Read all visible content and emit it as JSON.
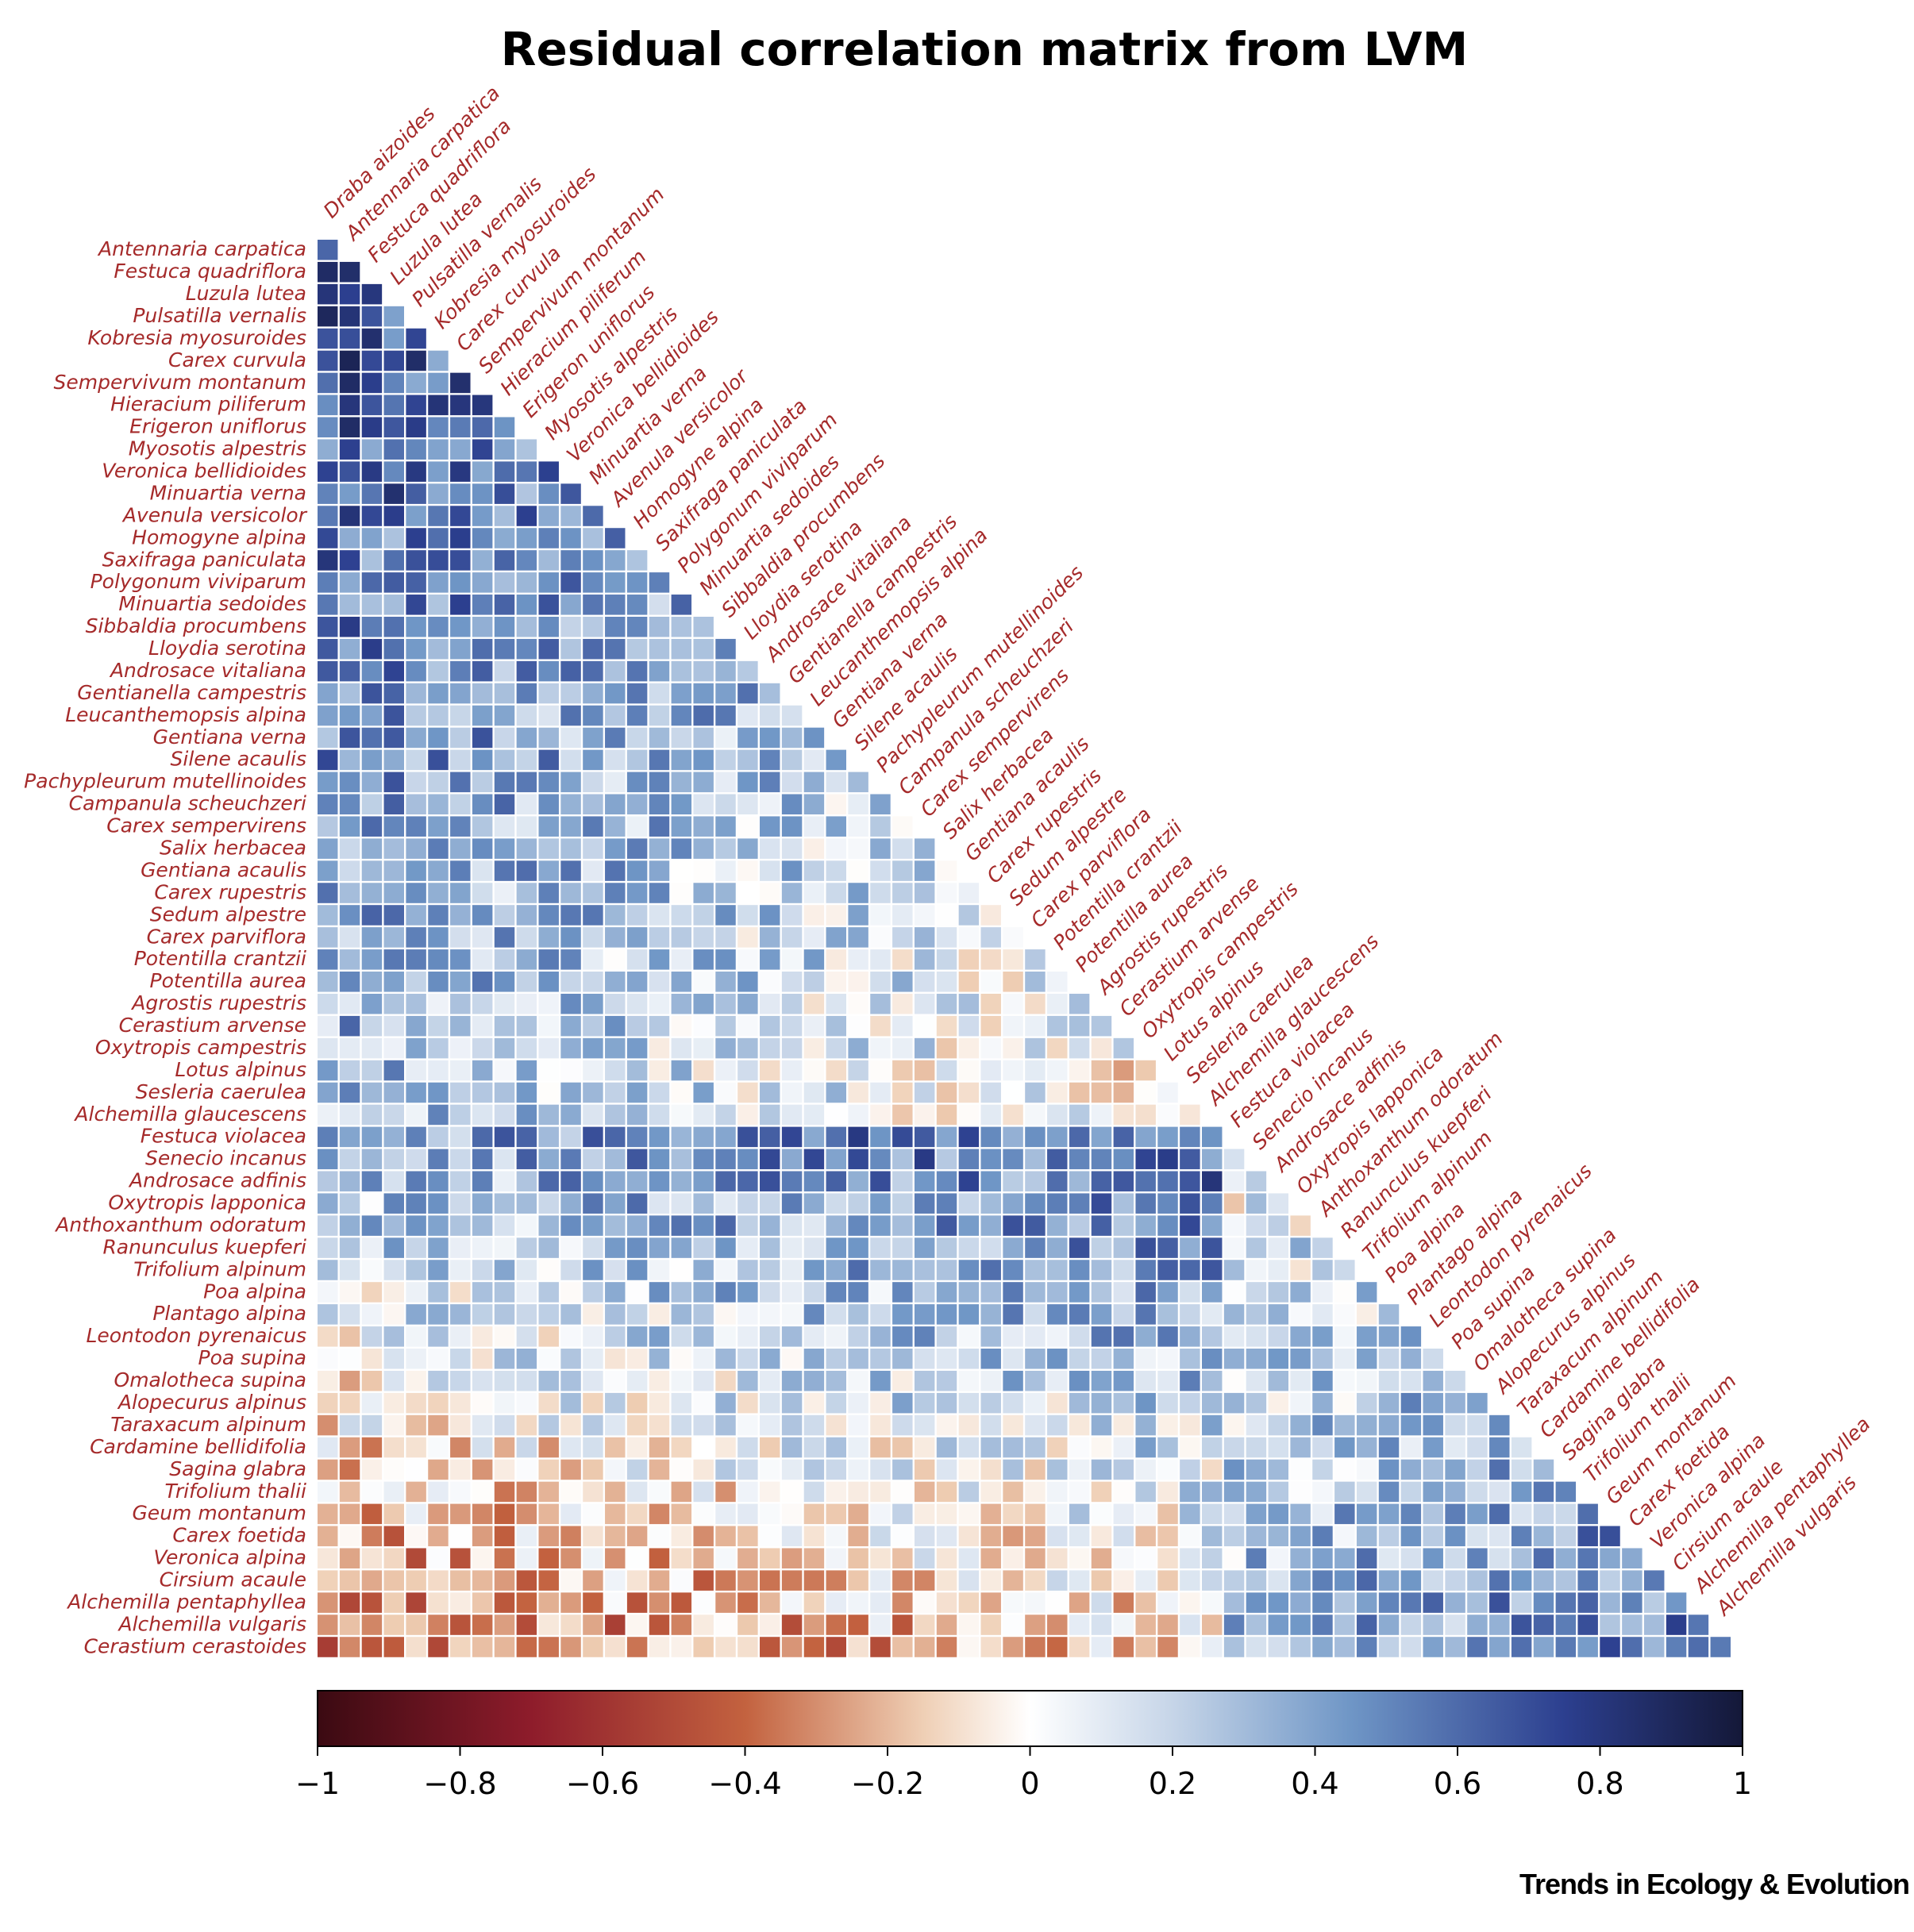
{
  "chart_data": {
    "type": "heatmap",
    "title": "Residual correlation matrix from LVM",
    "species": [
      "Draba aizoides",
      "Antennaria carpatica",
      "Festuca quadriflora",
      "Luzula lutea",
      "Pulsatilla vernalis",
      "Kobresia myosuroides",
      "Carex curvula",
      "Sempervivum montanum",
      "Hieracium piliferum",
      "Erigeron uniflorus",
      "Myosotis alpestris",
      "Veronica bellidioides",
      "Minuartia verna",
      "Avenula versicolor",
      "Homogyne alpina",
      "Saxifraga paniculata",
      "Polygonum viviparum",
      "Minuartia sedoides",
      "Sibbaldia procumbens",
      "Lloydia serotina",
      "Androsace vitaliana",
      "Gentianella campestris",
      "Leucanthemopsis alpina",
      "Gentiana verna",
      "Silene acaulis",
      "Pachypleurum mutellinoides",
      "Campanula scheuchzeri",
      "Carex sempervirens",
      "Salix herbacea",
      "Gentiana acaulis",
      "Carex rupestris",
      "Sedum alpestre",
      "Carex parviflora",
      "Potentilla crantzii",
      "Potentilla aurea",
      "Agrostis rupestris",
      "Cerastium arvense",
      "Oxytropis campestris",
      "Lotus alpinus",
      "Sesleria caerulea",
      "Alchemilla glaucescens",
      "Festuca violacea",
      "Senecio incanus",
      "Androsace adfinis",
      "Oxytropis lapponica",
      "Anthoxanthum odoratum",
      "Ranunculus kuepferi",
      "Trifolium alpinum",
      "Poa alpina",
      "Plantago alpina",
      "Leontodon pyrenaicus",
      "Poa supina",
      "Omalotheca supina",
      "Alopecurus alpinus",
      "Taraxacum alpinum",
      "Cardamine bellidifolia",
      "Sagina glabra",
      "Trifolium thalii",
      "Geum montanum",
      "Carex foetida",
      "Veronica alpina",
      "Cirsium acaule",
      "Alchemilla pentaphyllea",
      "Alchemilla vulgaris",
      "Cerastium cerastoides"
    ],
    "column_labels": [
      "Draba aizoides",
      "Antennaria carpatica",
      "Festuca quadriflora",
      "Luzula lutea",
      "Pulsatilla vernalis",
      "Kobresia myosuroides",
      "Carex curvula",
      "Sempervivum montanum",
      "Hieracium piliferum",
      "Erigeron uniflorus",
      "Myosotis alpestris",
      "Veronica bellidioides",
      "Minuartia verna",
      "Avenula versicolor",
      "Homogyne alpina",
      "Saxifraga paniculata",
      "Polygonum viviparum",
      "Minuartia sedoides",
      "Sibbaldia procumbens",
      "Lloydia serotina",
      "Androsace vitaliana",
      "Gentianella campestris",
      "Leucanthemopsis alpina",
      "Gentiana verna",
      "Silene acaulis",
      "Pachypleurum mutellinoides",
      "Campanula scheuchzeri",
      "Carex sempervirens",
      "Salix herbacea",
      "Gentiana acaulis",
      "Carex rupestris",
      "Sedum alpestre",
      "Carex parviflora",
      "Potentilla crantzii",
      "Potentilla aurea",
      "Agrostis rupestris",
      "Cerastium arvense",
      "Oxytropis campestris",
      "Lotus alpinus",
      "Sesleria caerulea",
      "Alchemilla glaucescens",
      "Festuca violacea",
      "Senecio incanus",
      "Androsace adfinis",
      "Oxytropis lapponica",
      "Anthoxanthum odoratum",
      "Ranunculus kuepferi",
      "Trifolium alpinum",
      "Poa alpina",
      "Plantago alpina",
      "Leontodon pyrenaicus",
      "Poa supina",
      "Omalotheca supina",
      "Alopecurus alpinus",
      "Taraxacum alpinum",
      "Cardamine bellidifolia",
      "Sagina glabra",
      "Trifolium thalii",
      "Geum montanum",
      "Carex foetida",
      "Veronica alpina",
      "Cirsium acaule",
      "Alchemilla pentaphyllea",
      "Alchemilla vulgaris"
    ],
    "row_labels": [
      "Antennaria carpatica",
      "Festuca quadriflora",
      "Luzula lutea",
      "Pulsatilla vernalis",
      "Kobresia myosuroides",
      "Carex curvula",
      "Sempervivum montanum",
      "Hieracium piliferum",
      "Erigeron uniflorus",
      "Myosotis alpestris",
      "Veronica bellidioides",
      "Minuartia verna",
      "Avenula versicolor",
      "Homogyne alpina",
      "Saxifraga paniculata",
      "Polygonum viviparum",
      "Minuartia sedoides",
      "Sibbaldia procumbens",
      "Lloydia serotina",
      "Androsace vitaliana",
      "Gentianella campestris",
      "Leucanthemopsis alpina",
      "Gentiana verna",
      "Silene acaulis",
      "Pachypleurum mutellinoides",
      "Campanula scheuchzeri",
      "Carex sempervirens",
      "Salix herbacea",
      "Gentiana acaulis",
      "Carex rupestris",
      "Sedum alpestre",
      "Carex parviflora",
      "Potentilla crantzii",
      "Potentilla aurea",
      "Agrostis rupestris",
      "Cerastium arvense",
      "Oxytropis campestris",
      "Lotus alpinus",
      "Sesleria caerulea",
      "Alchemilla glaucescens",
      "Festuca violacea",
      "Senecio incanus",
      "Androsace adfinis",
      "Oxytropis lapponica",
      "Anthoxanthum odoratum",
      "Ranunculus kuepferi",
      "Trifolium alpinum",
      "Poa alpina",
      "Plantago alpina",
      "Leontodon pyrenaicus",
      "Poa supina",
      "Omalotheca supina",
      "Alopecurus alpinus",
      "Taraxacum alpinum",
      "Cardamine bellidifolia",
      "Sagina glabra",
      "Trifolium thalii",
      "Geum montanum",
      "Carex foetida",
      "Veronica alpina",
      "Cirsium acaule",
      "Alchemilla pentaphyllea",
      "Alchemilla vulgaris",
      "Cerastium cerastoides"
    ],
    "value_range": [
      -1,
      1
    ],
    "lower_triangle_only": true,
    "cell_values_generation": "approximate: block structure of positive correlations among the first ~40 species (blue), negative correlations between the first and last groups (red), positive correlations among the last ~15 species (blue)",
    "colorbar": {
      "ticks": [
        "−1",
        "−0.8",
        "−0.6",
        "−0.4",
        "−0.2",
        "0",
        "0.2",
        "0.4",
        "0.6",
        "0.8",
        "1"
      ],
      "tick_values": [
        -1,
        -0.8,
        -0.6,
        -0.4,
        -0.2,
        0,
        0.2,
        0.4,
        0.6,
        0.8,
        1
      ],
      "stops": [
        {
          "v": -1.0,
          "c": "#3b0a12"
        },
        {
          "v": -0.7,
          "c": "#8e1c2b"
        },
        {
          "v": -0.4,
          "c": "#c3623f"
        },
        {
          "v": -0.15,
          "c": "#efcfb5"
        },
        {
          "v": 0.0,
          "c": "#ffffff"
        },
        {
          "v": 0.2,
          "c": "#c6d5e8"
        },
        {
          "v": 0.45,
          "c": "#6f96c6"
        },
        {
          "v": 0.75,
          "c": "#2c3f8f"
        },
        {
          "v": 1.0,
          "c": "#141838"
        }
      ]
    },
    "label_color": "#a52a2a"
  },
  "footer": {
    "credit": "Trends in Ecology & Evolution"
  }
}
